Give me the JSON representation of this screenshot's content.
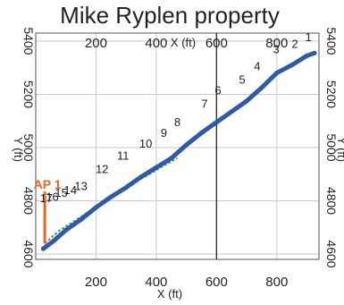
{
  "chart_data": {
    "type": "line",
    "title": "Mike Ryplen property",
    "xlabel": "X (ft)",
    "ylabel": "Y (ft)",
    "xlim": [
      0,
      940
    ],
    "ylim": [
      4580,
      5430
    ],
    "x_ticks": [
      200,
      400,
      600,
      800
    ],
    "y_ticks": [
      4600,
      4800,
      5000,
      5200,
      5400
    ],
    "grid": true,
    "x_marker": 600,
    "well": {
      "name": "AP 1",
      "x": 30,
      "y_top": 4835,
      "y_bottom": 4640,
      "color": "#e8661e"
    },
    "series": [
      {
        "color": "#2f5aa8",
        "x": [
          25,
          60,
          100,
          150,
          200,
          250,
          300,
          350,
          400,
          450,
          500,
          550,
          600,
          650,
          700,
          750,
          800,
          850,
          900,
          925
        ],
        "y": [
          4620,
          4650,
          4690,
          4730,
          4775,
          4815,
          4850,
          4890,
          4925,
          4960,
          5010,
          5055,
          5095,
          5135,
          5175,
          5225,
          5280,
          5310,
          5345,
          5355
        ]
      }
    ],
    "trace_color": "#4aa84a",
    "trace": {
      "x": [
        30,
        80,
        130,
        190,
        250,
        310,
        370,
        430,
        470
      ],
      "y": [
        4640,
        4690,
        4725,
        4770,
        4820,
        4860,
        4895,
        4935,
        4960
      ]
    },
    "stations": [
      {
        "label": "1",
        "x": 905,
        "y": 5400
      },
      {
        "label": "2",
        "x": 860,
        "y": 5375
      },
      {
        "label": "3",
        "x": 798,
        "y": 5355
      },
      {
        "label": "4",
        "x": 735,
        "y": 5290
      },
      {
        "label": "5",
        "x": 685,
        "y": 5240
      },
      {
        "label": "6",
        "x": 605,
        "y": 5200
      },
      {
        "label": "7",
        "x": 560,
        "y": 5150
      },
      {
        "label": "8",
        "x": 470,
        "y": 5080
      },
      {
        "label": "9",
        "x": 425,
        "y": 5040
      },
      {
        "label": "10",
        "x": 365,
        "y": 5000
      },
      {
        "label": "11",
        "x": 290,
        "y": 4955
      },
      {
        "label": "12",
        "x": 220,
        "y": 4905
      },
      {
        "label": "13",
        "x": 150,
        "y": 4840
      },
      {
        "label": "14",
        "x": 115,
        "y": 4825
      },
      {
        "label": "15",
        "x": 85,
        "y": 4815
      },
      {
        "label": "16",
        "x": 55,
        "y": 4800
      },
      {
        "label": "17",
        "x": 35,
        "y": 4795
      }
    ]
  }
}
